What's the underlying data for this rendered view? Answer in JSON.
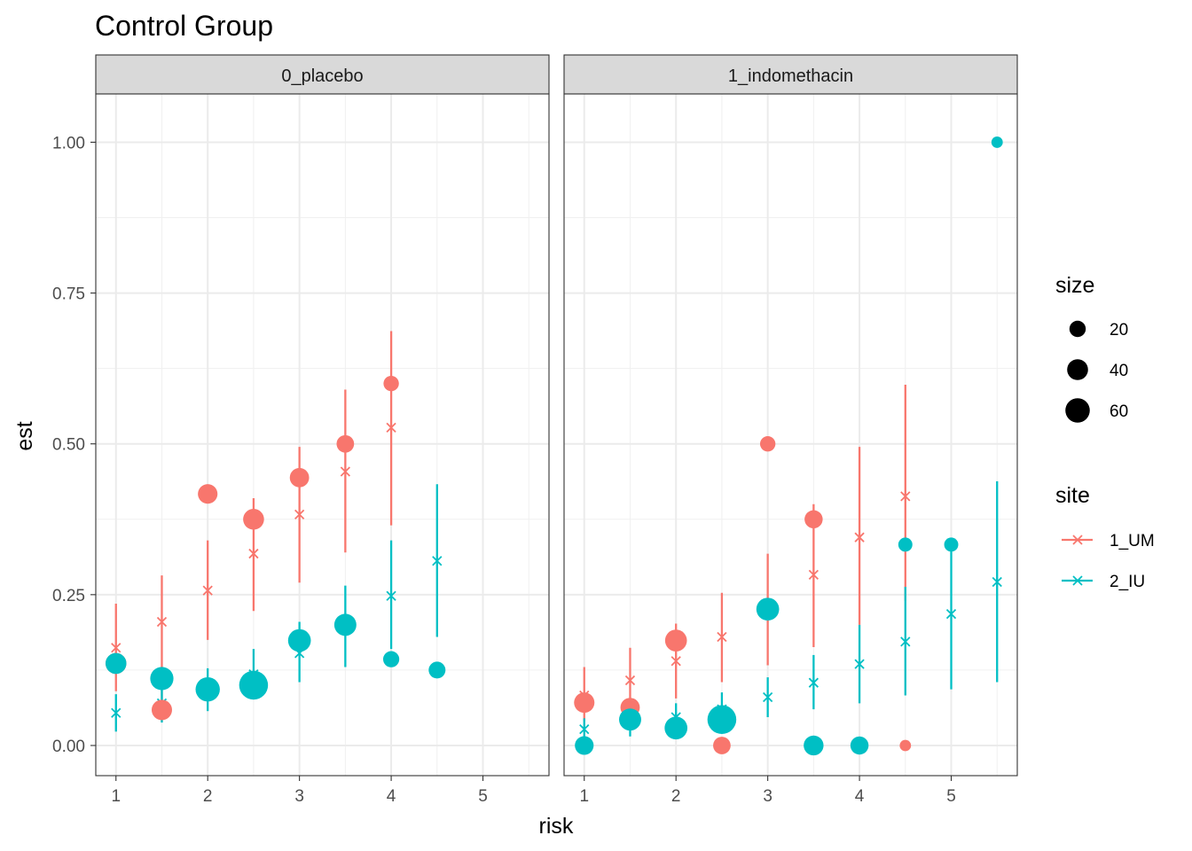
{
  "chart_data": {
    "type": "scatter",
    "title": "Control Group",
    "xlabel": "risk",
    "ylabel": "est",
    "xlim": [
      0.78,
      5.72
    ],
    "ylim": [
      -0.05,
      1.08
    ],
    "x_ticks": [
      1,
      2,
      3,
      4,
      5
    ],
    "y_ticks": [
      0,
      0.25,
      0.5,
      0.75,
      1.0
    ],
    "x_tick_labels": [
      "1",
      "2",
      "3",
      "4",
      "5"
    ],
    "y_tick_labels": [
      "0.00",
      "0.25",
      "0.50",
      "0.75",
      "1.00"
    ],
    "grid": true,
    "legend_position": "right",
    "size_legend": {
      "title": "size",
      "entries": [
        {
          "label": "20",
          "value": 20
        },
        {
          "label": "40",
          "value": 40
        },
        {
          "label": "60",
          "value": 60
        }
      ]
    },
    "site_legend": {
      "title": "site",
      "entries": [
        {
          "label": "1_UM",
          "color": "#F8766D"
        },
        {
          "label": "2_IU",
          "color": "#00BFC4"
        }
      ]
    },
    "panels": [
      {
        "label": "0_placebo",
        "series": [
          {
            "name": "1_UM",
            "color": "#F8766D",
            "points": [
              {
                "x": 1.0,
                "y": 0.136,
                "size": 30
              },
              {
                "x": 1.5,
                "y": 0.059,
                "size": 28
              },
              {
                "x": 2.0,
                "y": 0.417,
                "size": 25
              },
              {
                "x": 2.5,
                "y": 0.375,
                "size": 30
              },
              {
                "x": 3.0,
                "y": 0.444,
                "size": 24
              },
              {
                "x": 3.5,
                "y": 0.5,
                "size": 18
              },
              {
                "x": 4.0,
                "y": 0.6,
                "size": 12
              }
            ],
            "estimates": [
              {
                "x": 1.0,
                "est": 0.162,
                "lo": 0.09,
                "hi": 0.235
              },
              {
                "x": 1.5,
                "est": 0.205,
                "lo": 0.04,
                "hi": 0.282
              },
              {
                "x": 2.0,
                "est": 0.257,
                "lo": 0.175,
                "hi": 0.34
              },
              {
                "x": 2.5,
                "est": 0.318,
                "lo": 0.223,
                "hi": 0.41
              },
              {
                "x": 3.0,
                "est": 0.383,
                "lo": 0.27,
                "hi": 0.495
              },
              {
                "x": 3.5,
                "est": 0.454,
                "lo": 0.32,
                "hi": 0.59
              },
              {
                "x": 4.0,
                "est": 0.527,
                "lo": 0.365,
                "hi": 0.687
              }
            ]
          },
          {
            "name": "2_IU",
            "color": "#00BFC4",
            "points": [
              {
                "x": 1.0,
                "y": 0.136,
                "size": 30
              },
              {
                "x": 1.5,
                "y": 0.111,
                "size": 40
              },
              {
                "x": 2.0,
                "y": 0.093,
                "size": 45
              },
              {
                "x": 2.5,
                "y": 0.1,
                "size": 70
              },
              {
                "x": 3.0,
                "y": 0.174,
                "size": 38
              },
              {
                "x": 3.5,
                "y": 0.2,
                "size": 35
              },
              {
                "x": 4.0,
                "y": 0.143,
                "size": 14
              },
              {
                "x": 4.5,
                "y": 0.125,
                "size": 16
              }
            ],
            "estimates": [
              {
                "x": 1.0,
                "est": 0.054,
                "lo": 0.023,
                "hi": 0.085
              },
              {
                "x": 1.5,
                "est": 0.07,
                "lo": 0.038,
                "hi": 0.1
              },
              {
                "x": 2.0,
                "est": 0.09,
                "lo": 0.057,
                "hi": 0.128
              },
              {
                "x": 2.5,
                "est": 0.118,
                "lo": 0.08,
                "hi": 0.16
              },
              {
                "x": 3.0,
                "est": 0.153,
                "lo": 0.105,
                "hi": 0.205
              },
              {
                "x": 3.5,
                "est": 0.197,
                "lo": 0.13,
                "hi": 0.265
              },
              {
                "x": 4.0,
                "est": 0.248,
                "lo": 0.16,
                "hi": 0.34
              },
              {
                "x": 4.5,
                "est": 0.306,
                "lo": 0.18,
                "hi": 0.433
              }
            ]
          }
        ]
      },
      {
        "label": "1_indomethacin",
        "series": [
          {
            "name": "1_UM",
            "color": "#F8766D",
            "points": [
              {
                "x": 1.0,
                "y": 0.071,
                "size": 28
              },
              {
                "x": 1.5,
                "y": 0.063,
                "size": 24
              },
              {
                "x": 2.0,
                "y": 0.174,
                "size": 34
              },
              {
                "x": 2.5,
                "y": 0.0,
                "size": 18
              },
              {
                "x": 3.0,
                "y": 0.5,
                "size": 12
              },
              {
                "x": 3.5,
                "y": 0.375,
                "size": 20
              },
              {
                "x": 4.5,
                "y": 0.0,
                "size": 4
              }
            ],
            "estimates": [
              {
                "x": 1.0,
                "est": 0.083,
                "lo": 0.04,
                "hi": 0.13
              },
              {
                "x": 1.5,
                "est": 0.108,
                "lo": 0.065,
                "hi": 0.162
              },
              {
                "x": 2.0,
                "est": 0.14,
                "lo": 0.078,
                "hi": 0.202
              },
              {
                "x": 2.5,
                "est": 0.18,
                "lo": 0.105,
                "hi": 0.253
              },
              {
                "x": 3.0,
                "est": 0.225,
                "lo": 0.133,
                "hi": 0.318
              },
              {
                "x": 3.5,
                "est": 0.283,
                "lo": 0.163,
                "hi": 0.4
              },
              {
                "x": 4.0,
                "est": 0.345,
                "lo": 0.2,
                "hi": 0.495
              },
              {
                "x": 4.5,
                "est": 0.413,
                "lo": 0.24,
                "hi": 0.598
              }
            ]
          },
          {
            "name": "2_IU",
            "color": "#00BFC4",
            "points": [
              {
                "x": 1.0,
                "y": 0.0,
                "size": 22
              },
              {
                "x": 1.5,
                "y": 0.043,
                "size": 35
              },
              {
                "x": 2.0,
                "y": 0.029,
                "size": 38
              },
              {
                "x": 2.5,
                "y": 0.043,
                "size": 70
              },
              {
                "x": 3.0,
                "y": 0.226,
                "size": 38
              },
              {
                "x": 3.5,
                "y": 0.0,
                "size": 26
              },
              {
                "x": 4.0,
                "y": 0.0,
                "size": 20
              },
              {
                "x": 4.5,
                "y": 0.333,
                "size": 9
              },
              {
                "x": 5.0,
                "y": 0.333,
                "size": 9
              },
              {
                "x": 5.5,
                "y": 1.0,
                "size": 4
              }
            ],
            "estimates": [
              {
                "x": 1.0,
                "est": 0.027,
                "lo": 0.01,
                "hi": 0.045
              },
              {
                "x": 1.5,
                "est": 0.035,
                "lo": 0.015,
                "hi": 0.055
              },
              {
                "x": 2.0,
                "est": 0.047,
                "lo": 0.025,
                "hi": 0.07
              },
              {
                "x": 2.5,
                "est": 0.06,
                "lo": 0.035,
                "hi": 0.088
              },
              {
                "x": 3.0,
                "est": 0.08,
                "lo": 0.047,
                "hi": 0.113
              },
              {
                "x": 3.5,
                "est": 0.104,
                "lo": 0.06,
                "hi": 0.15
              },
              {
                "x": 4.0,
                "est": 0.135,
                "lo": 0.07,
                "hi": 0.2
              },
              {
                "x": 4.5,
                "est": 0.172,
                "lo": 0.083,
                "hi": 0.263
              },
              {
                "x": 5.0,
                "est": 0.218,
                "lo": 0.093,
                "hi": 0.342
              },
              {
                "x": 5.5,
                "est": 0.271,
                "lo": 0.105,
                "hi": 0.438
              }
            ]
          }
        ]
      }
    ]
  }
}
